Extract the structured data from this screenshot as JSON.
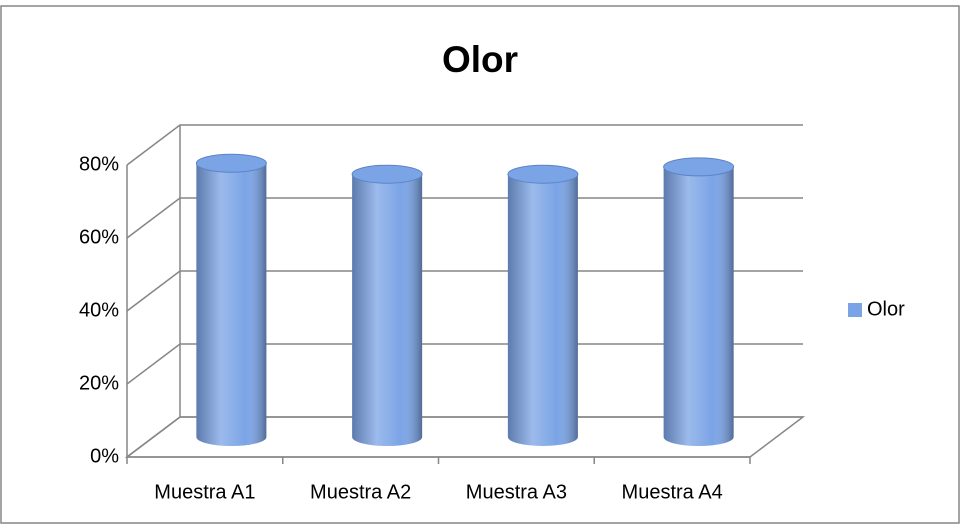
{
  "chart_data": {
    "type": "bar3d",
    "title": "Olor",
    "categories": [
      "Muestra A1",
      "Muestra A2",
      "Muestra A3",
      "Muestra A4"
    ],
    "series": [
      {
        "name": "Olor",
        "color": "#7ba4e6",
        "values": [
          75,
          72,
          72,
          74
        ]
      }
    ],
    "ylim": [
      0,
      80
    ],
    "yticks": [
      {
        "value": 0,
        "label": "0%"
      },
      {
        "value": 20,
        "label": "20%"
      },
      {
        "value": 40,
        "label": "40%"
      },
      {
        "value": 60,
        "label": "60%"
      },
      {
        "value": 80,
        "label": "80%"
      }
    ],
    "grid": true,
    "legend": "right"
  }
}
